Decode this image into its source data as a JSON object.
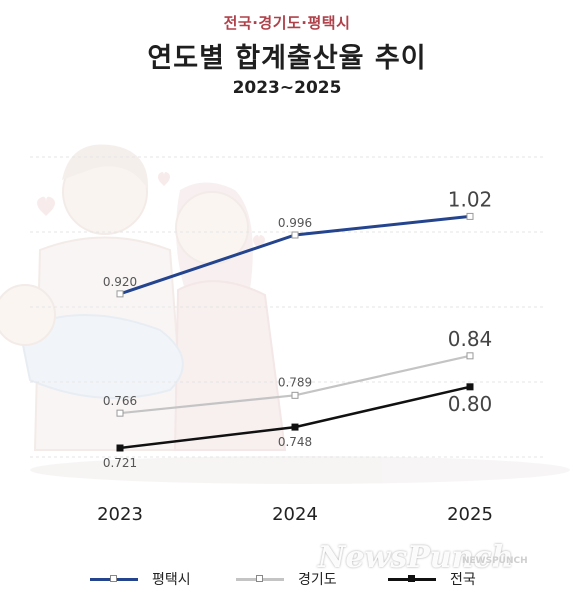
{
  "header": {
    "region": "전국·경기도·평택시",
    "title": "연도별 합계출산율 추이",
    "period": "2023~2025"
  },
  "watermark": {
    "text": "NewsPunch",
    "small": "NEWSPUNCH"
  },
  "colors": {
    "pyeongtaek": "#24448e",
    "gyeonggi": "#c4c4c4",
    "national": "#111111",
    "region_text": "#b0414a"
  },
  "chart_data": {
    "type": "line",
    "title": "연도별 합계출산율 추이",
    "x": [
      "2023",
      "2024",
      "2025"
    ],
    "series": [
      {
        "name": "평택시",
        "values": [
          0.92,
          0.996,
          1.02
        ],
        "labels": [
          "0.920",
          "0.996",
          "1.02"
        ]
      },
      {
        "name": "경기도",
        "values": [
          0.766,
          0.789,
          0.84
        ],
        "labels": [
          "0.766",
          "0.789",
          "0.84"
        ]
      },
      {
        "name": "전국",
        "values": [
          0.721,
          0.748,
          0.8
        ],
        "labels": [
          "0.721",
          "0.748",
          "0.80"
        ]
      }
    ],
    "legend": "bottom",
    "grid": true
  }
}
